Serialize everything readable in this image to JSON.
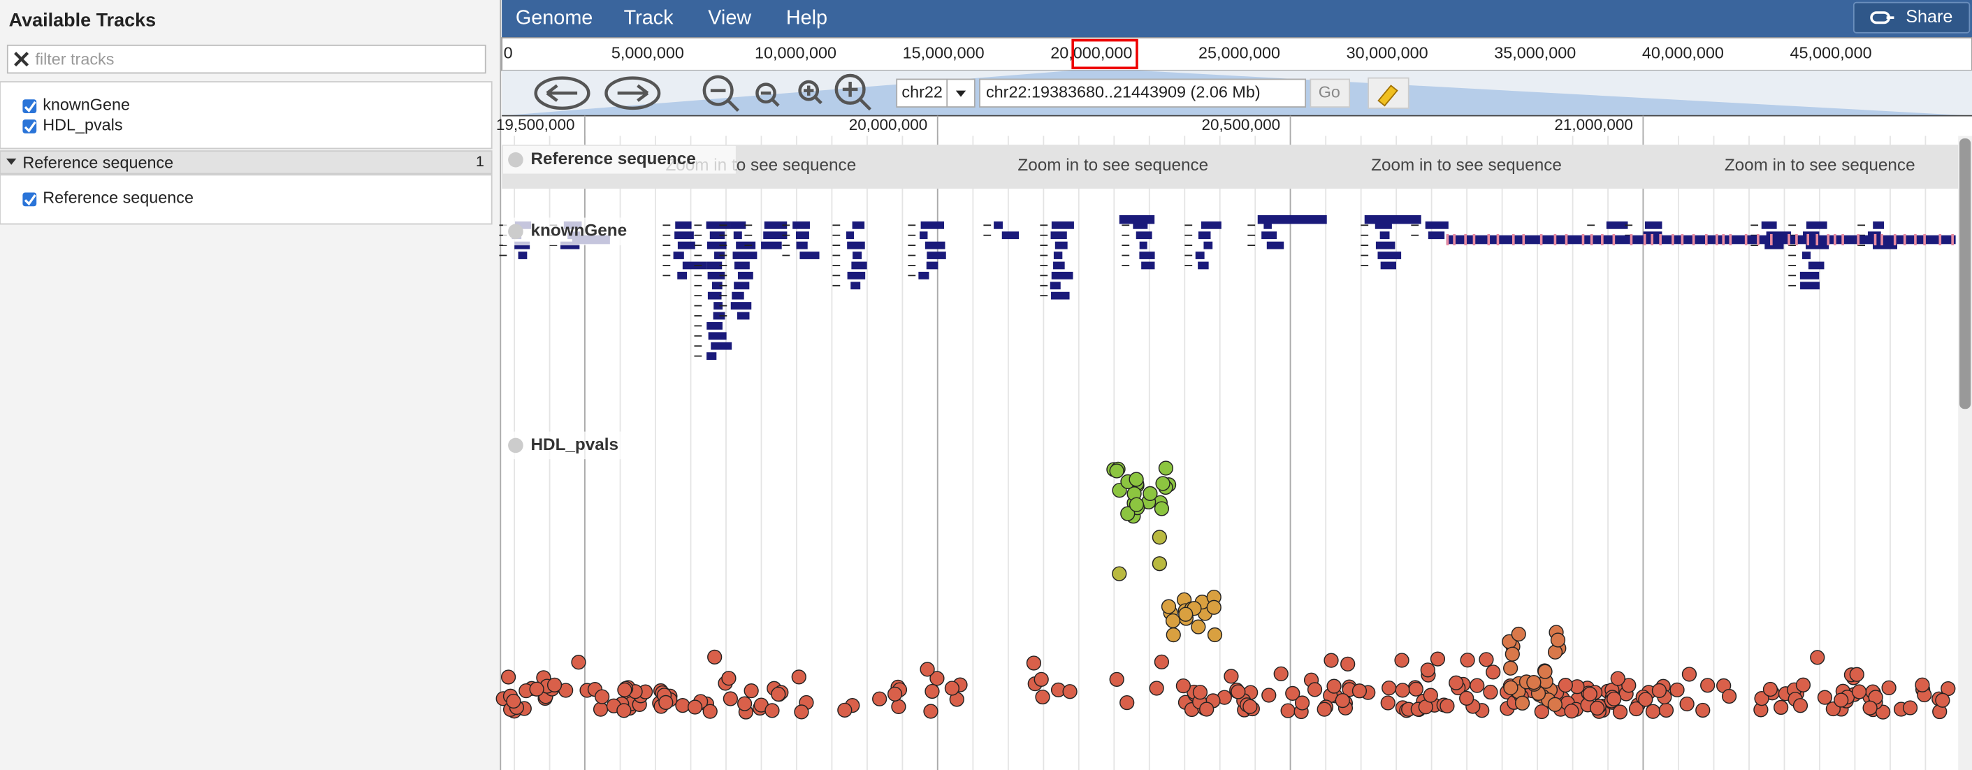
{
  "sidebar": {
    "title": "Available Tracks",
    "filter_placeholder": "filter tracks",
    "tracks": [
      "knownGene",
      "HDL_pvals"
    ],
    "category": {
      "name": "Reference sequence",
      "count": "1",
      "tracks": [
        "Reference sequence"
      ]
    }
  },
  "menu": [
    "Genome",
    "Track",
    "View",
    "Help"
  ],
  "share": "Share",
  "overview": {
    "ticks": [
      "0",
      "5,000,000",
      "10,000,000",
      "15,000,000",
      "20,000,000",
      "25,000,000",
      "30,000,000",
      "35,000,000",
      "40,000,000",
      "45,000,000"
    ]
  },
  "nav": {
    "chrom": "chr22",
    "location": "chr22:19383680..21443909 (2.06 Mb)",
    "go": "Go"
  },
  "ruler": {
    "ticks": [
      "19,500,000",
      "20,000,000",
      "20,500,000",
      "21,000,000"
    ]
  },
  "tracks": [
    {
      "label": "Reference sequence",
      "message": "Zoom in to see sequence"
    },
    {
      "label": "knownGene"
    },
    {
      "label": "HDL_pvals"
    }
  ]
}
